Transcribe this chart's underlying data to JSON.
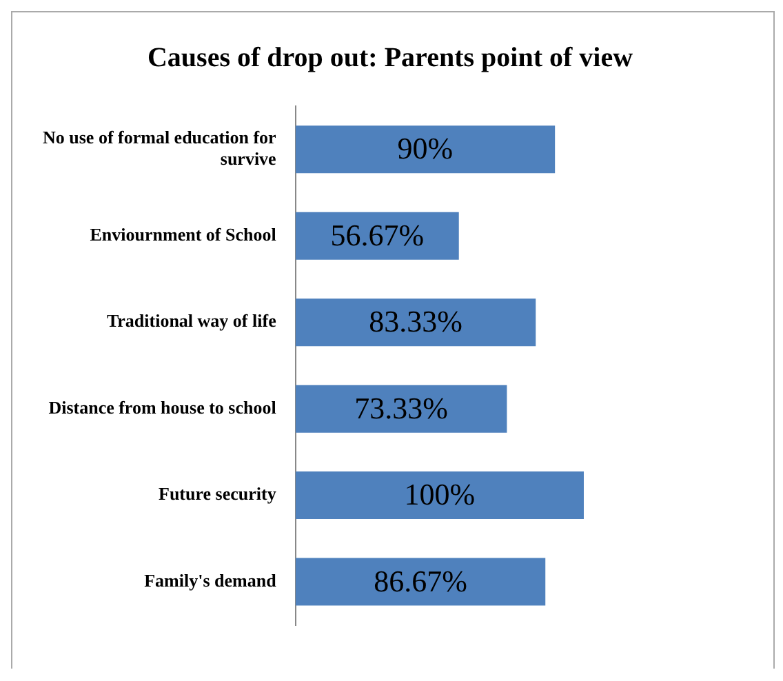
{
  "chart_data": {
    "type": "bar",
    "orientation": "horizontal",
    "title": "Causes of drop out: Parents point of view",
    "categories": [
      "No use of  formal education for survive",
      "Enviournment of School",
      "Traditional way of life",
      "Distance from house to school",
      "Future security",
      "Family's demand"
    ],
    "values": [
      90,
      56.67,
      83.33,
      73.33,
      100,
      86.67
    ],
    "value_labels": [
      "90%",
      "56.67%",
      "83.33%",
      "73.33%",
      "100%",
      "86.67%"
    ],
    "color": "#4f81bd",
    "grid": false,
    "legend": false,
    "tick_labels": "y"
  }
}
